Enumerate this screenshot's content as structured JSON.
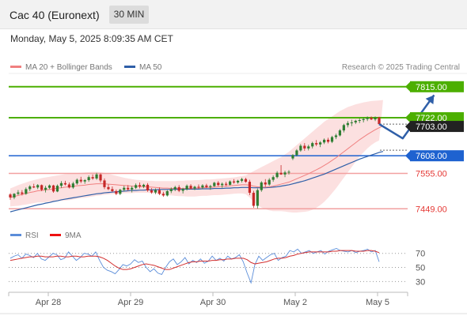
{
  "header": {
    "title": "Cac 40 (Euronext)",
    "timeframe": "30 MIN"
  },
  "datetime": "Monday, May 5, 2025 8:09:35 AM CET",
  "legend": {
    "bb_label": "MA 20 + Bollinger Bands",
    "ma50_label": "MA 50",
    "credit": "Research © 2025 Trading Central"
  },
  "rsi_legend": {
    "rsi_label": "RSI",
    "ma_label": "9MA"
  },
  "colors": {
    "up": "#2e7d32",
    "down": "#c62828",
    "ma20": "#f08080",
    "ma50": "#2f5fa8",
    "band": "#fbd5d5",
    "green_level": "#4caf00",
    "blue_level": "#1e62d0",
    "red_level": "#f2a0a0",
    "arrow": "#2f5fa8",
    "rsi": "#5b8dd9",
    "rsi_ma": "#d32f2f"
  },
  "chart_data": {
    "type": "candlestick",
    "x_labels": [
      "Apr 28",
      "Apr 29",
      "Apr 30",
      "May 2",
      "May 5"
    ],
    "y_range": [
      7400,
      7850
    ],
    "levels": [
      {
        "value": 7815.0,
        "label": "7815.00",
        "kind": "resistance"
      },
      {
        "value": 7722.0,
        "label": "7722.00",
        "kind": "resistance"
      },
      {
        "value": 7703.0,
        "label": "7703.00",
        "kind": "last"
      },
      {
        "value": 7608.0,
        "label": "7608.00",
        "kind": "pivot"
      },
      {
        "value": 7555.0,
        "label": "7555.00",
        "kind": "support"
      },
      {
        "value": 7449.0,
        "label": "7449.00",
        "kind": "support"
      }
    ],
    "ohlc": [
      [
        7492,
        7496,
        7476,
        7483
      ],
      [
        7483,
        7496,
        7478,
        7494
      ],
      [
        7494,
        7505,
        7490,
        7498
      ],
      [
        7498,
        7505,
        7489,
        7494
      ],
      [
        7494,
        7513,
        7491,
        7508
      ],
      [
        7508,
        7520,
        7502,
        7516
      ],
      [
        7516,
        7524,
        7511,
        7513
      ],
      [
        7513,
        7523,
        7508,
        7520
      ],
      [
        7520,
        7522,
        7502,
        7506
      ],
      [
        7506,
        7518,
        7498,
        7512
      ],
      [
        7512,
        7522,
        7508,
        7519
      ],
      [
        7519,
        7521,
        7497,
        7501
      ],
      [
        7501,
        7522,
        7499,
        7518
      ],
      [
        7518,
        7532,
        7512,
        7526
      ],
      [
        7526,
        7533,
        7519,
        7522
      ],
      [
        7522,
        7528,
        7510,
        7513
      ],
      [
        7513,
        7530,
        7509,
        7525
      ],
      [
        7525,
        7540,
        7521,
        7536
      ],
      [
        7536,
        7545,
        7526,
        7531
      ],
      [
        7531,
        7538,
        7524,
        7535
      ],
      [
        7535,
        7549,
        7530,
        7544
      ],
      [
        7544,
        7552,
        7536,
        7540
      ],
      [
        7540,
        7557,
        7536,
        7552
      ],
      [
        7552,
        7555,
        7528,
        7534
      ],
      [
        7534,
        7540,
        7508,
        7514
      ],
      [
        7514,
        7522,
        7505,
        7508
      ],
      [
        7508,
        7516,
        7499,
        7502
      ],
      [
        7502,
        7507,
        7490,
        7494
      ],
      [
        7494,
        7509,
        7490,
        7506
      ],
      [
        7506,
        7518,
        7501,
        7512
      ],
      [
        7512,
        7520,
        7503,
        7507
      ],
      [
        7507,
        7517,
        7498,
        7512
      ],
      [
        7512,
        7525,
        7508,
        7520
      ],
      [
        7520,
        7528,
        7510,
        7516
      ],
      [
        7516,
        7524,
        7511,
        7521
      ],
      [
        7521,
        7526,
        7500,
        7504
      ],
      [
        7504,
        7511,
        7494,
        7498
      ],
      [
        7498,
        7510,
        7493,
        7505
      ],
      [
        7505,
        7513,
        7490,
        7494
      ],
      [
        7494,
        7500,
        7485,
        7489
      ],
      [
        7489,
        7505,
        7486,
        7502
      ],
      [
        7502,
        7513,
        7496,
        7508
      ],
      [
        7508,
        7518,
        7502,
        7514
      ],
      [
        7514,
        7520,
        7499,
        7503
      ],
      [
        7503,
        7512,
        7495,
        7508
      ],
      [
        7508,
        7522,
        7504,
        7518
      ],
      [
        7518,
        7523,
        7507,
        7510
      ],
      [
        7510,
        7518,
        7505,
        7515
      ],
      [
        7515,
        7522,
        7509,
        7513
      ],
      [
        7513,
        7523,
        7508,
        7519
      ],
      [
        7519,
        7524,
        7511,
        7514
      ],
      [
        7514,
        7521,
        7506,
        7517
      ],
      [
        7517,
        7530,
        7515,
        7527
      ],
      [
        7527,
        7532,
        7517,
        7520
      ],
      [
        7520,
        7528,
        7512,
        7524
      ],
      [
        7524,
        7530,
        7516,
        7521
      ],
      [
        7521,
        7534,
        7519,
        7531
      ],
      [
        7531,
        7538,
        7524,
        7528
      ],
      [
        7528,
        7536,
        7524,
        7533
      ],
      [
        7533,
        7542,
        7528,
        7538
      ],
      [
        7538,
        7542,
        7527,
        7530
      ],
      [
        7530,
        7536,
        7490,
        7497
      ],
      [
        7497,
        7503,
        7452,
        7458
      ],
      [
        7458,
        7510,
        7450,
        7505
      ],
      [
        7505,
        7532,
        7500,
        7528
      ],
      [
        7528,
        7538,
        7515,
        7522
      ],
      [
        7522,
        7541,
        7518,
        7536
      ],
      [
        7536,
        7549,
        7530,
        7544
      ],
      [
        7544,
        7562,
        7540,
        7557
      ],
      [
        7557,
        7580,
        7551,
        7552
      ],
      [
        7552,
        7563,
        7544,
        7558
      ],
      [
        7558,
        7565,
        7552,
        7560
      ],
      [
        7600,
        7613,
        7595,
        7610
      ],
      [
        7610,
        7628,
        7606,
        7624
      ],
      [
        7624,
        7643,
        7620,
        7638
      ],
      [
        7638,
        7646,
        7623,
        7630
      ],
      [
        7630,
        7641,
        7624,
        7636
      ],
      [
        7636,
        7650,
        7630,
        7646
      ],
      [
        7646,
        7655,
        7637,
        7642
      ],
      [
        7642,
        7652,
        7634,
        7648
      ],
      [
        7648,
        7660,
        7643,
        7656
      ],
      [
        7656,
        7662,
        7645,
        7650
      ],
      [
        7650,
        7668,
        7646,
        7664
      ],
      [
        7664,
        7674,
        7658,
        7669
      ],
      [
        7669,
        7688,
        7666,
        7684
      ],
      [
        7684,
        7704,
        7678,
        7700
      ],
      [
        7700,
        7712,
        7693,
        7706
      ],
      [
        7706,
        7716,
        7697,
        7708
      ],
      [
        7708,
        7716,
        7703,
        7713
      ],
      [
        7713,
        7720,
        7706,
        7715
      ],
      [
        7715,
        7723,
        7708,
        7718
      ],
      [
        7718,
        7726,
        7712,
        7722
      ],
      [
        7722,
        7726,
        7715,
        7717
      ],
      [
        7717,
        7726,
        7712,
        7723
      ],
      [
        7723,
        7725,
        7703,
        7703
      ]
    ],
    "ma20": [
      7483,
      7486,
      7489,
      7492,
      7495,
      7498,
      7500,
      7503,
      7504,
      7506,
      7507,
      7509,
      7511,
      7512,
      7514,
      7515,
      7516,
      7518,
      7519,
      7520,
      7522,
      7523,
      7524,
      7524,
      7524,
      7523,
      7522,
      7521,
      7520,
      7519,
      7518,
      7517,
      7517,
      7516,
      7515,
      7515,
      7514,
      7513,
      7512,
      7511,
      7511,
      7510,
      7510,
      7510,
      7510,
      7510,
      7510,
      7511,
      7511,
      7512,
      7513,
      7513,
      7514,
      7515,
      7516,
      7517,
      7518,
      7519,
      7520,
      7521,
      7521,
      7520,
      7517,
      7515,
      7514,
      7514,
      7515,
      7517,
      7520,
      7523,
      7526,
      7529,
      7534,
      7539,
      7544,
      7549,
      7554,
      7560,
      7566,
      7572,
      7579,
      7586,
      7594,
      7602,
      7611,
      7620,
      7629,
      7638,
      7647,
      7656,
      7664,
      7672,
      7679,
      7686,
      7692,
      7697
    ],
    "ma50": [
      7440,
      7443,
      7446,
      7449,
      7452,
      7455,
      7458,
      7461,
      7463,
      7466,
      7468,
      7471,
      7473,
      7476,
      7478,
      7480,
      7482,
      7484,
      7486,
      7488,
      7490,
      7492,
      7494,
      7495,
      7497,
      7498,
      7499,
      7500,
      7501,
      7502,
      7503,
      7504,
      7504,
      7505,
      7505,
      7506,
      7506,
      7506,
      7507,
      7507,
      7507,
      7507,
      7507,
      7508,
      7508,
      7508,
      7508,
      7508,
      7508,
      7509,
      7509,
      7509,
      7510,
      7510,
      7510,
      7511,
      7511,
      7512,
      7512,
      7513,
      7513,
      7513,
      7512,
      7512,
      7512,
      7512,
      7513,
      7514,
      7515,
      7517,
      7519,
      7521,
      7524,
      7527,
      7530,
      7533,
      7537,
      7541,
      7545,
      7549,
      7553,
      7558,
      7563,
      7568,
      7573,
      7578,
      7583,
      7588,
      7593,
      7598,
      7602,
      7606,
      7610,
      7614,
      7618,
      7621
    ],
    "bb_upper": [
      7510,
      7515,
      7520,
      7524,
      7528,
      7532,
      7535,
      7538,
      7541,
      7543,
      7545,
      7547,
      7549,
      7551,
      7553,
      7554,
      7555,
      7556,
      7557,
      7558,
      7559,
      7560,
      7560,
      7559,
      7557,
      7554,
      7551,
      7548,
      7545,
      7542,
      7540,
      7538,
      7536,
      7535,
      7534,
      7533,
      7533,
      7532,
      7532,
      7532,
      7532,
      7532,
      7532,
      7533,
      7533,
      7534,
      7534,
      7535,
      7535,
      7536,
      7537,
      7537,
      7538,
      7539,
      7540,
      7541,
      7542,
      7543,
      7545,
      7547,
      7549,
      7555,
      7562,
      7568,
      7574,
      7580,
      7586,
      7592,
      7598,
      7604,
      7612,
      7620,
      7630,
      7640,
      7650,
      7660,
      7670,
      7680,
      7690,
      7700,
      7710,
      7718,
      7726,
      7734,
      7742,
      7748,
      7754,
      7758,
      7762,
      7765,
      7768,
      7770,
      7772,
      7773,
      7774,
      7775
    ],
    "bb_lower": [
      7456,
      7457,
      7458,
      7460,
      7462,
      7464,
      7466,
      7468,
      7468,
      7469,
      7470,
      7471,
      7472,
      7473,
      7474,
      7475,
      7477,
      7479,
      7481,
      7482,
      7484,
      7486,
      7488,
      7489,
      7491,
      7492,
      7493,
      7494,
      7495,
      7496,
      7496,
      7496,
      7497,
      7497,
      7497,
      7497,
      7496,
      7495,
      7493,
      7491,
      7490,
      7489,
      7488,
      7487,
      7487,
      7486,
      7486,
      7486,
      7487,
      7488,
      7488,
      7489,
      7490,
      7490,
      7491,
      7492,
      7493,
      7494,
      7495,
      7495,
      7493,
      7483,
      7470,
      7460,
      7453,
      7448,
      7444,
      7442,
      7442,
      7442,
      7441,
      7439,
      7438,
      7438,
      7439,
      7440,
      7442,
      7446,
      7452,
      7460,
      7470,
      7482,
      7496,
      7510,
      7526,
      7542,
      7558,
      7574,
      7590,
      7606,
      7618,
      7630,
      7640,
      7648,
      7654,
      7660
    ],
    "projection": [
      [
        7703,
        0
      ],
      [
        7660,
        6
      ],
      [
        7790,
        14
      ]
    ],
    "rsi": {
      "levels": [
        70,
        50,
        30
      ],
      "y_range": [
        18,
        82
      ],
      "rsi": [
        63,
        66,
        68,
        63,
        69,
        67,
        64,
        70,
        62,
        60,
        65,
        70,
        68,
        61,
        63,
        72,
        66,
        60,
        64,
        70,
        69,
        66,
        72,
        60,
        50,
        46,
        44,
        41,
        47,
        54,
        52,
        55,
        61,
        57,
        59,
        50,
        44,
        48,
        42,
        40,
        50,
        58,
        62,
        54,
        58,
        64,
        55,
        60,
        57,
        62,
        56,
        59,
        66,
        60,
        63,
        59,
        66,
        62,
        64,
        68,
        58,
        42,
        28,
        54,
        66,
        60,
        64,
        68,
        70,
        60,
        64,
        66,
        74,
        72,
        76,
        70,
        72,
        74,
        70,
        72,
        74,
        69,
        73,
        75,
        77,
        74,
        73,
        72,
        74,
        71,
        73,
        74,
        76,
        72,
        74,
        58
      ],
      "ma": [
        60,
        61,
        62,
        63,
        64,
        65,
        65,
        66,
        66,
        65,
        65,
        65,
        66,
        66,
        65,
        65,
        66,
        66,
        65,
        65,
        66,
        66,
        66,
        65,
        63,
        60,
        56,
        52,
        49,
        47,
        47,
        48,
        50,
        52,
        54,
        55,
        54,
        53,
        51,
        49,
        47,
        47,
        49,
        51,
        53,
        55,
        57,
        58,
        58,
        59,
        59,
        59,
        60,
        60,
        61,
        61,
        62,
        62,
        63,
        63,
        63,
        61,
        57,
        55,
        56,
        57,
        58,
        60,
        62,
        63,
        63,
        64,
        66,
        67,
        69,
        70,
        71,
        72,
        72,
        72,
        72,
        72,
        72,
        73,
        73,
        74,
        74,
        74,
        74,
        73,
        73,
        73,
        74,
        74,
        73,
        71
      ]
    },
    "xlabel": "",
    "ylabel": ""
  }
}
